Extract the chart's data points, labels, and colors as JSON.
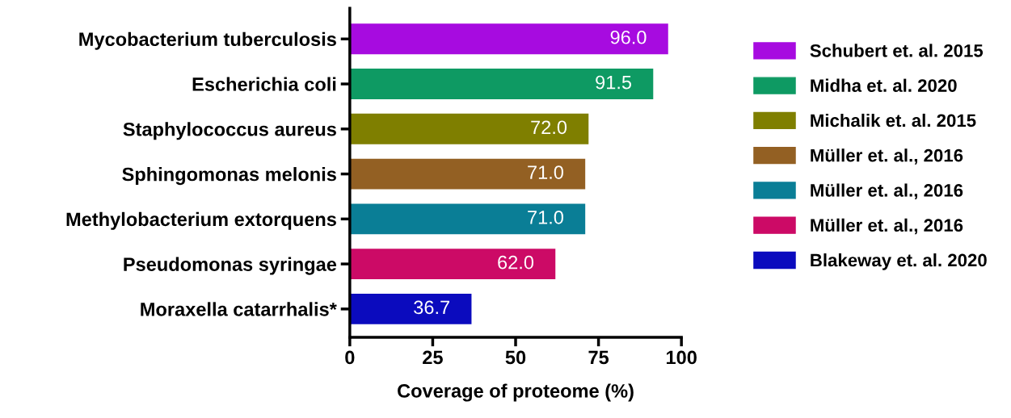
{
  "chart_data": {
    "type": "bar",
    "orientation": "horizontal",
    "categories": [
      "Mycobacterium tuberculosis",
      "Escherichia coli",
      "Staphylococcus aureus",
      "Sphingomonas melonis",
      "Methylobacterium extorquens",
      "Pseudomonas syringae",
      "Moraxella catarrhalis*"
    ],
    "series": [
      {
        "name": "Schubert et. al. 2015",
        "color": "#a70be0",
        "values": [
          96.0,
          null,
          null,
          null,
          null,
          null,
          null
        ]
      },
      {
        "name": "Midha et. al. 2020",
        "color": "#0e9a63",
        "values": [
          null,
          91.5,
          null,
          null,
          null,
          null,
          null
        ]
      },
      {
        "name": "Michalik et. al. 2015",
        "color": "#7f7f00",
        "values": [
          null,
          null,
          72.0,
          null,
          null,
          null,
          null
        ]
      },
      {
        "name": "Müller et. al., 2016",
        "color": "#936023",
        "values": [
          null,
          null,
          null,
          71.0,
          null,
          null,
          null
        ]
      },
      {
        "name": "Müller et. al., 2016",
        "color": "#0a7e96",
        "values": [
          null,
          null,
          null,
          null,
          71.0,
          null,
          null
        ]
      },
      {
        "name": "Müller et. al., 2016",
        "color": "#cc0a66",
        "values": [
          null,
          null,
          null,
          null,
          null,
          62.0,
          null
        ]
      },
      {
        "name": "Blakeway et. al. 2020",
        "color": "#0b0bbe",
        "values": [
          null,
          null,
          null,
          null,
          null,
          null,
          36.7
        ]
      }
    ],
    "value_labels": [
      "96.0",
      "91.5",
      "72.0",
      "71.0",
      "71.0",
      "62.0",
      "36.7"
    ],
    "xlabel": "Coverage of proteome (%)",
    "xlim": [
      0,
      100
    ],
    "xticks": [
      0,
      25,
      50,
      75,
      100
    ],
    "grid": false,
    "legend": "right"
  }
}
